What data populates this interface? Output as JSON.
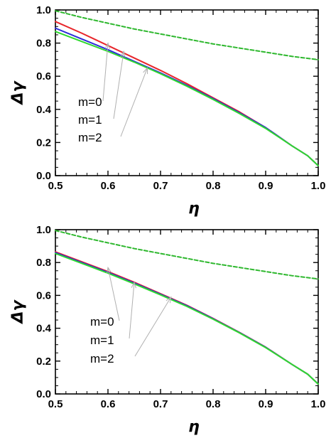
{
  "chart_data": [
    {
      "type": "line",
      "xlabel": "η",
      "ylabel": "Δγ",
      "xlim": [
        0.5,
        1.0
      ],
      "ylim": [
        0.0,
        1.0
      ],
      "xticks": [
        "0.5",
        "0.6",
        "0.7",
        "0.8",
        "0.9",
        "1.0"
      ],
      "yticks": [
        "0.0",
        "0.2",
        "0.4",
        "0.6",
        "0.8",
        "1.0"
      ],
      "grid": false,
      "series": [
        {
          "name": "m=0",
          "color": "#e8262b",
          "style": "solid",
          "x": [
            0.5,
            0.55,
            0.6,
            0.65,
            0.7,
            0.75,
            0.8,
            0.85,
            0.9,
            0.95,
            0.98,
            1.0
          ],
          "y": [
            0.93,
            0.86,
            0.785,
            0.71,
            0.635,
            0.555,
            0.47,
            0.385,
            0.29,
            0.18,
            0.12,
            0.06
          ]
        },
        {
          "name": "m=1",
          "color": "#2b2bd8",
          "style": "solid",
          "x": [
            0.5,
            0.55,
            0.6,
            0.65,
            0.7,
            0.75,
            0.8,
            0.85,
            0.9,
            0.95,
            0.98,
            1.0
          ],
          "y": [
            0.89,
            0.825,
            0.76,
            0.69,
            0.62,
            0.545,
            0.465,
            0.38,
            0.29,
            0.18,
            0.12,
            0.06
          ]
        },
        {
          "name": "m=2",
          "color": "#2fd82f",
          "style": "solid",
          "x": [
            0.5,
            0.55,
            0.6,
            0.65,
            0.7,
            0.75,
            0.8,
            0.85,
            0.9,
            0.95,
            0.98,
            1.0
          ],
          "y": [
            0.87,
            0.81,
            0.75,
            0.685,
            0.615,
            0.54,
            0.46,
            0.375,
            0.285,
            0.18,
            0.12,
            0.06
          ]
        },
        {
          "color": "#2fb82f",
          "style": "dashed",
          "x": [
            0.5,
            0.55,
            0.6,
            0.65,
            0.7,
            0.75,
            0.8,
            0.85,
            0.9,
            0.95,
            1.0
          ],
          "y": [
            0.995,
            0.955,
            0.92,
            0.885,
            0.855,
            0.825,
            0.795,
            0.77,
            0.745,
            0.72,
            0.7
          ]
        }
      ],
      "annotations": [
        {
          "text": "m=0",
          "arrow_to": [
            0.6,
            0.8
          ]
        },
        {
          "text": "m=1",
          "arrow_to": [
            0.63,
            0.75
          ]
        },
        {
          "text": "m=2",
          "arrow_to": [
            0.675,
            0.65
          ]
        }
      ]
    },
    {
      "type": "line",
      "xlabel": "η",
      "ylabel": "Δγ",
      "xlim": [
        0.5,
        1.0
      ],
      "ylim": [
        0.0,
        1.0
      ],
      "xticks": [
        "0.5",
        "0.6",
        "0.7",
        "0.8",
        "0.9",
        "1.0"
      ],
      "yticks": [
        "0.0",
        "0.2",
        "0.4",
        "0.6",
        "0.8",
        "1.0"
      ],
      "grid": false,
      "series": [
        {
          "name": "m=0",
          "color": "#e8262b",
          "style": "solid",
          "x": [
            0.5,
            0.55,
            0.6,
            0.65,
            0.7,
            0.75,
            0.8,
            0.85,
            0.9,
            0.95,
            0.98,
            1.0
          ],
          "y": [
            0.865,
            0.805,
            0.745,
            0.68,
            0.61,
            0.54,
            0.46,
            0.375,
            0.285,
            0.18,
            0.12,
            0.06
          ]
        },
        {
          "name": "m=1",
          "color": "#2b2bd8",
          "style": "solid",
          "x": [
            0.5,
            0.55,
            0.6,
            0.65,
            0.7,
            0.75,
            0.8,
            0.85,
            0.9,
            0.95,
            0.98,
            1.0
          ],
          "y": [
            0.86,
            0.8,
            0.74,
            0.675,
            0.607,
            0.537,
            0.458,
            0.374,
            0.284,
            0.18,
            0.12,
            0.06
          ]
        },
        {
          "name": "m=2",
          "color": "#2fd82f",
          "style": "solid",
          "x": [
            0.5,
            0.55,
            0.6,
            0.65,
            0.7,
            0.75,
            0.8,
            0.85,
            0.9,
            0.95,
            0.98,
            1.0
          ],
          "y": [
            0.855,
            0.795,
            0.735,
            0.67,
            0.603,
            0.533,
            0.455,
            0.372,
            0.282,
            0.18,
            0.12,
            0.06
          ]
        },
        {
          "color": "#2fb82f",
          "style": "dashed",
          "x": [
            0.5,
            0.55,
            0.6,
            0.65,
            0.7,
            0.75,
            0.8,
            0.85,
            0.9,
            0.95,
            1.0
          ],
          "y": [
            0.995,
            0.955,
            0.92,
            0.885,
            0.855,
            0.825,
            0.795,
            0.77,
            0.745,
            0.72,
            0.7
          ]
        }
      ],
      "annotations": [
        {
          "text": "m=0",
          "arrow_to": [
            0.6,
            0.77
          ]
        },
        {
          "text": "m=1",
          "arrow_to": [
            0.65,
            0.68
          ]
        },
        {
          "text": "m=2",
          "arrow_to": [
            0.72,
            0.59
          ]
        }
      ]
    }
  ]
}
